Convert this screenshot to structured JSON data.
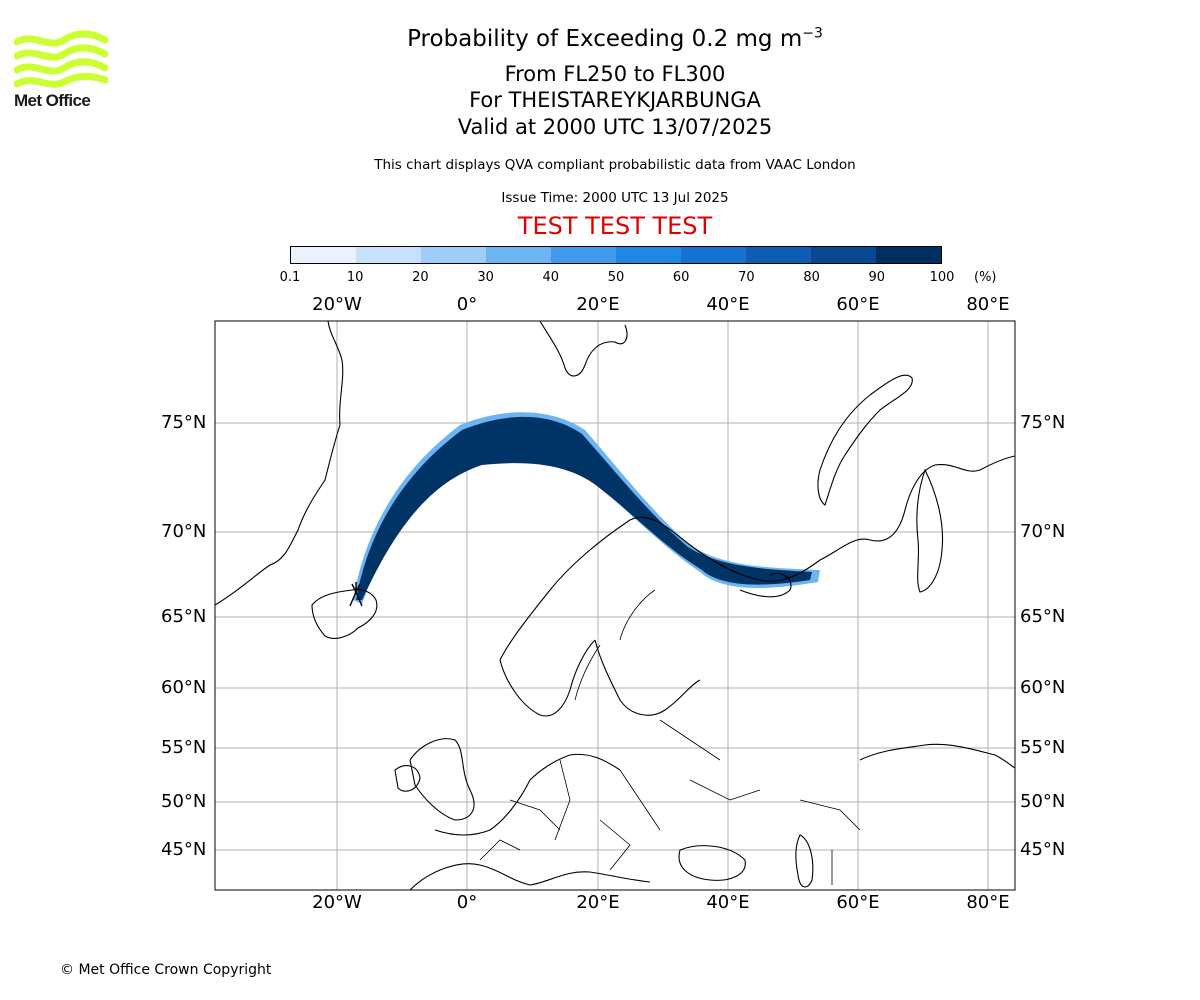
{
  "header": {
    "title": "Probability of Exceeding 0.2 mg m",
    "title_sup": "−3",
    "subtitle_levels": "From FL250 to FL300",
    "subtitle_volcano": "For THEISTAREYKJARBUNGA",
    "subtitle_valid": "Valid at 2000 UTC 13/07/2025",
    "note": "This chart displays QVA compliant probabilistic data from VAAC London",
    "issue_time": "Issue Time: 2000 UTC 13 Jul 2025",
    "test_banner": "TEST TEST TEST"
  },
  "logo": {
    "text": "Met Office",
    "color": "#ccff33"
  },
  "colorbar": {
    "unit": "(%)",
    "ticks": [
      "0.1",
      "10",
      "20",
      "30",
      "40",
      "50",
      "60",
      "70",
      "80",
      "90",
      "100"
    ],
    "colors": [
      "#e9f3fd",
      "#c6e2fa",
      "#9fcdf7",
      "#6cb4f2",
      "#3f9ae9",
      "#1e88e5",
      "#1572cf",
      "#0e5db3",
      "#084892",
      "#002f60"
    ]
  },
  "map": {
    "top_lon_labels": [
      "20°W",
      "0°",
      "20°E",
      "40°E",
      "60°E",
      "80°E"
    ],
    "bottom_lon_labels": [
      "20°W",
      "0°",
      "20°E",
      "40°E",
      "60°E",
      "80°E"
    ],
    "left_lat_labels": [
      "75°N",
      "70°N",
      "65°N",
      "60°N",
      "55°N",
      "50°N",
      "45°N"
    ],
    "right_lat_labels": [
      "75°N",
      "70°N",
      "65°N",
      "60°N",
      "55°N",
      "50°N",
      "45°N"
    ],
    "grid": true,
    "plume_color": "#003366",
    "volcano": "Theistareykjarbunga"
  },
  "footer": {
    "copyright": "© Met Office Crown Copyright"
  }
}
